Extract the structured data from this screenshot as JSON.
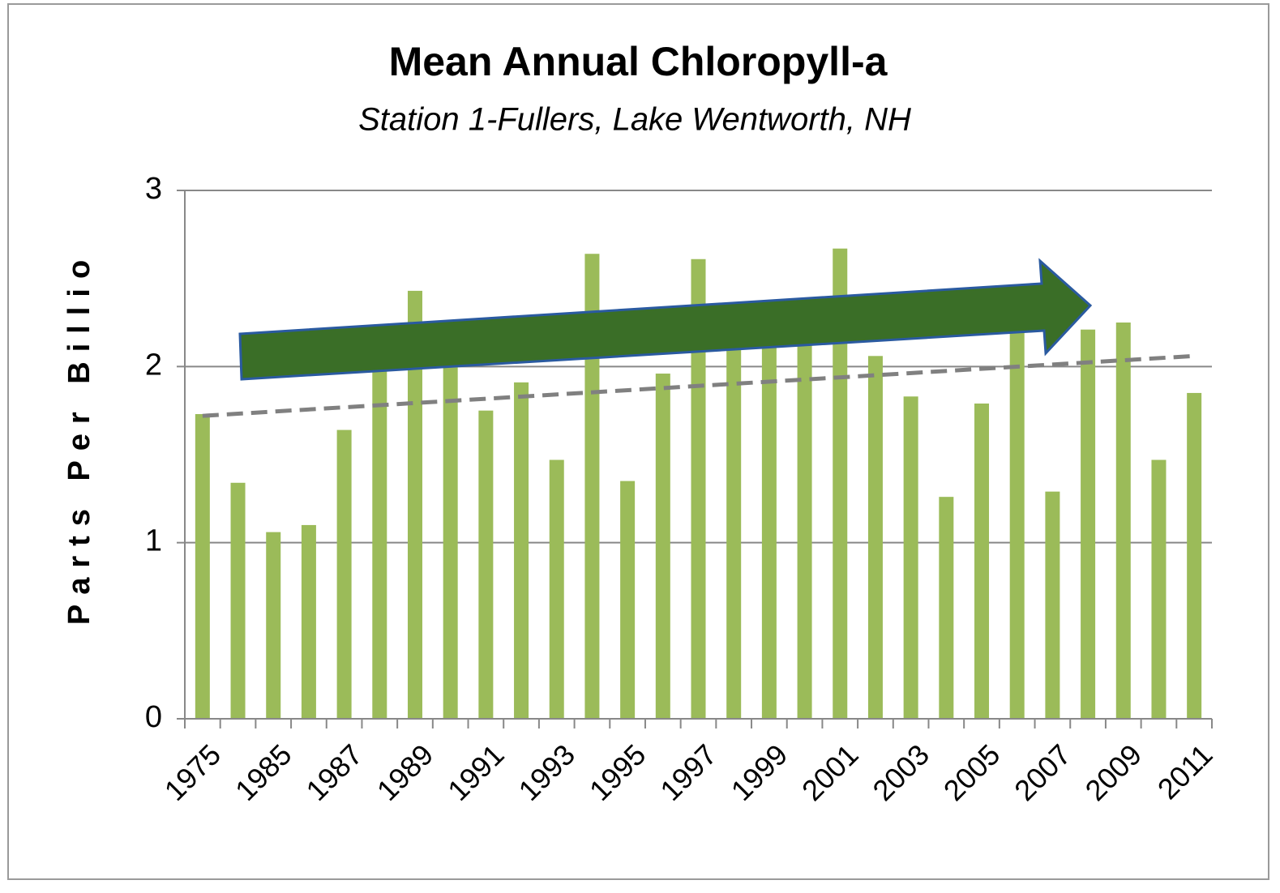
{
  "chart_data": {
    "type": "bar",
    "title": "Mean Annual Chloropyll-a",
    "subtitle": "Station 1-Fullers, Lake Wentworth, NH",
    "y_label": "Parts Per Billio",
    "categories": [
      "1975",
      null,
      "1985",
      null,
      "1987",
      null,
      "1989",
      null,
      "1991",
      null,
      "1993",
      null,
      "1995",
      null,
      "1997",
      null,
      "1999",
      null,
      "2001",
      null,
      "2003",
      null,
      "2005",
      null,
      "2007",
      null,
      "2009",
      null,
      "2011"
    ],
    "values": [
      1.73,
      1.34,
      1.06,
      1.1,
      1.64,
      1.99,
      2.43,
      2.02,
      1.75,
      1.91,
      1.47,
      2.64,
      1.35,
      1.96,
      2.61,
      2.2,
      2.15,
      2.2,
      2.67,
      2.06,
      1.83,
      1.26,
      1.79,
      2.25,
      1.29,
      2.21,
      2.25,
      1.47,
      1.85
    ],
    "color": "#9bbb59",
    "trend": [
      1.72,
      2.06
    ],
    "trend_color": "#808080",
    "ylim": [
      0,
      3
    ],
    "yticks": [
      0,
      1,
      2,
      3
    ],
    "grid": true
  }
}
